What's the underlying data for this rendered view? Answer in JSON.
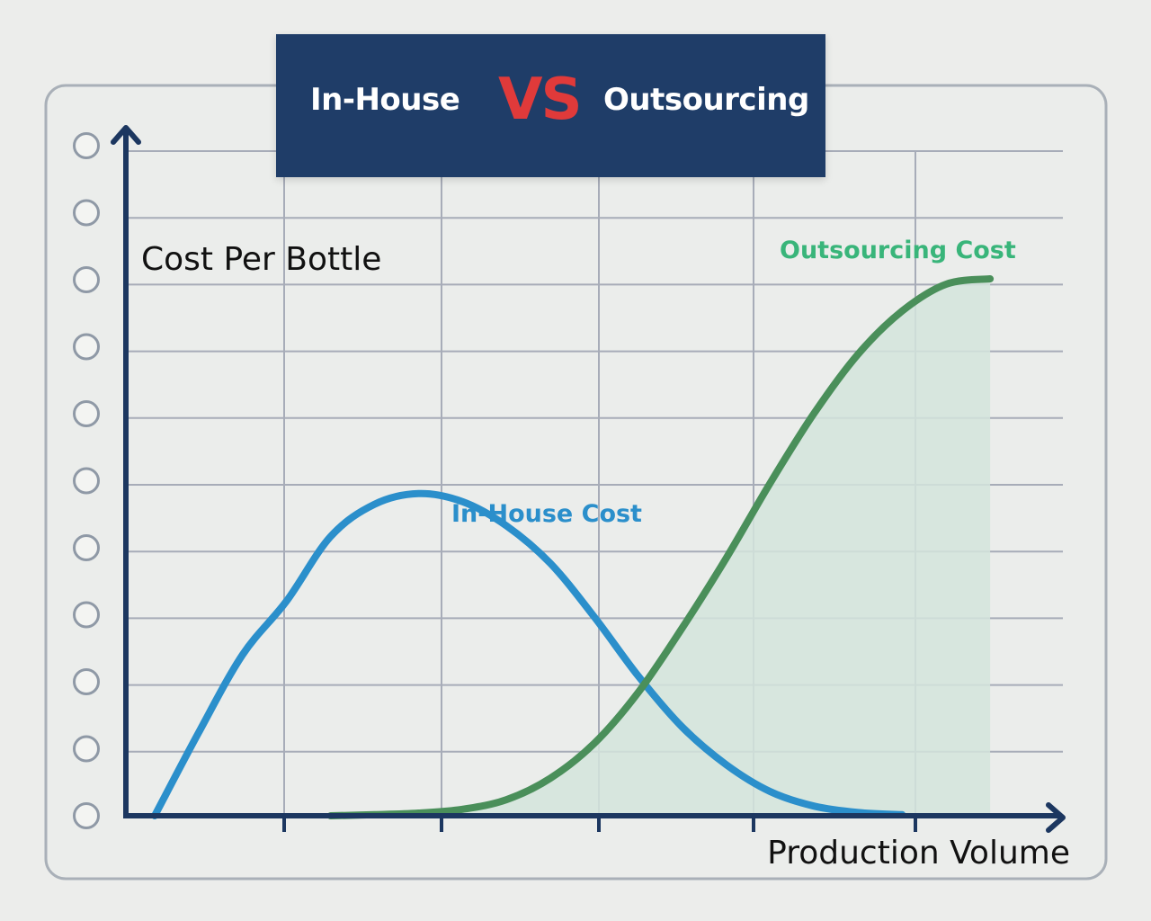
{
  "title": {
    "left": "In-House",
    "vs": "VS",
    "right": "Outsourcing"
  },
  "chart_data": {
    "type": "line",
    "xlabel": "Production Volume",
    "ylabel": "Cost Per Bottle",
    "xlim": [
      0,
      10
    ],
    "ylim": [
      0,
      10
    ],
    "grid": true,
    "series": [
      {
        "name": "In-House Cost",
        "color": "#2b8fcb",
        "fill": false,
        "x": [
          0.0,
          0.5,
          1.0,
          1.5,
          2.0,
          2.5,
          3.0,
          3.5,
          4.0,
          4.5,
          5.0,
          5.5,
          6.0,
          6.5,
          7.0,
          7.5,
          8.0,
          8.5
        ],
        "y": [
          0.0,
          1.55,
          3.0,
          4.0,
          5.2,
          5.8,
          6.0,
          5.85,
          5.4,
          4.7,
          3.7,
          2.6,
          1.65,
          0.95,
          0.45,
          0.18,
          0.06,
          0.02
        ]
      },
      {
        "name": "Outsourcing Cost",
        "color": "#4a8f5a",
        "fill": true,
        "fill_color": "#d4e4dc",
        "x": [
          2.0,
          2.5,
          3.0,
          3.5,
          4.0,
          4.5,
          5.0,
          5.5,
          6.0,
          6.5,
          7.0,
          7.5,
          8.0,
          8.5,
          9.0,
          9.5
        ],
        "y": [
          0.0,
          0.02,
          0.05,
          0.12,
          0.3,
          0.7,
          1.35,
          2.3,
          3.5,
          4.8,
          6.2,
          7.5,
          8.6,
          9.4,
          9.9,
          10.0
        ]
      }
    ]
  }
}
